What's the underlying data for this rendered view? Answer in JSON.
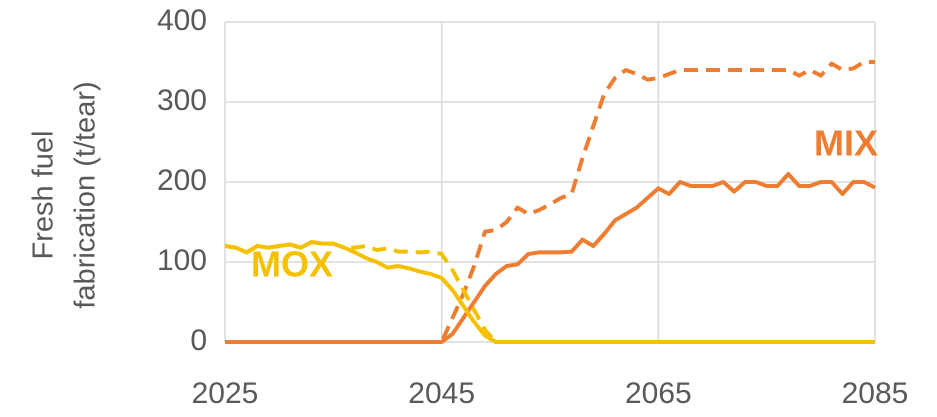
{
  "chart_data": {
    "type": "line",
    "ylabel": [
      "Fresh fuel",
      "fabrication (t/tear)"
    ],
    "annotations": [
      {
        "text": "MOX",
        "color": "#f5c000"
      },
      {
        "text": "MIX",
        "color": "#ed7d31"
      }
    ],
    "x": [
      2025,
      2026,
      2027,
      2028,
      2029,
      2030,
      2031,
      2032,
      2033,
      2034,
      2035,
      2036,
      2037,
      2038,
      2039,
      2040,
      2041,
      2042,
      2043,
      2044,
      2045,
      2046,
      2047,
      2048,
      2049,
      2050,
      2051,
      2052,
      2053,
      2054,
      2055,
      2056,
      2057,
      2058,
      2059,
      2060,
      2061,
      2062,
      2063,
      2064,
      2065,
      2066,
      2067,
      2068,
      2069,
      2070,
      2071,
      2072,
      2073,
      2074,
      2075,
      2076,
      2077,
      2078,
      2079,
      2080,
      2081,
      2082,
      2083,
      2084,
      2085
    ],
    "series": [
      {
        "color": "#ed7d31",
        "dashed": false,
        "values": [
          0,
          0,
          0,
          0,
          0,
          0,
          0,
          0,
          0,
          0,
          0,
          0,
          0,
          0,
          0,
          0,
          0,
          0,
          0,
          0,
          0,
          10,
          30,
          50,
          70,
          85,
          95,
          97,
          110,
          112,
          112,
          112,
          113,
          128,
          120,
          135,
          152,
          160,
          168,
          180,
          192,
          185,
          200,
          195,
          195,
          195,
          200,
          188,
          200,
          200,
          195,
          195,
          210,
          195,
          195,
          200,
          200,
          185,
          200,
          200,
          193
        ]
      },
      {
        "color": "#ed7d31",
        "dashed": true,
        "values": [
          0,
          0,
          0,
          0,
          0,
          0,
          0,
          0,
          0,
          0,
          0,
          0,
          0,
          0,
          0,
          0,
          0,
          0,
          0,
          0,
          0,
          30,
          60,
          95,
          138,
          140,
          150,
          168,
          160,
          165,
          172,
          180,
          185,
          230,
          270,
          310,
          330,
          340,
          335,
          328,
          330,
          335,
          340,
          340,
          340,
          340,
          340,
          340,
          340,
          340,
          340,
          340,
          340,
          333,
          340,
          333,
          348,
          340,
          342,
          350,
          350
        ]
      },
      {
        "color": "#f5c000",
        "dashed": true,
        "values": [
          120,
          118,
          112,
          120,
          118,
          120,
          122,
          118,
          125,
          123,
          123,
          118,
          118,
          120,
          115,
          117,
          113,
          113,
          112,
          113,
          110,
          90,
          65,
          40,
          15,
          0,
          0,
          0,
          0,
          0,
          0,
          0,
          0,
          0,
          0,
          0,
          0,
          0,
          0,
          0,
          0,
          0,
          0,
          0,
          0,
          0,
          0,
          0,
          0,
          0,
          0,
          0,
          0,
          0,
          0,
          0,
          0,
          0,
          0,
          0,
          0
        ]
      },
      {
        "color": "#f5c000",
        "dashed": false,
        "values": [
          120,
          118,
          112,
          120,
          118,
          120,
          122,
          118,
          125,
          123,
          123,
          118,
          112,
          105,
          100,
          93,
          95,
          92,
          88,
          85,
          80,
          65,
          45,
          25,
          8,
          0,
          0,
          0,
          0,
          0,
          0,
          0,
          0,
          0,
          0,
          0,
          0,
          0,
          0,
          0,
          0,
          0,
          0,
          0,
          0,
          0,
          0,
          0,
          0,
          0,
          0,
          0,
          0,
          0,
          0,
          0,
          0,
          0,
          0,
          0,
          0
        ]
      }
    ],
    "xlim": [
      2025,
      2085
    ],
    "xticks": [
      2025,
      2045,
      2065,
      2085
    ],
    "ylim": [
      0,
      400
    ],
    "yticks": [
      0,
      100,
      200,
      300,
      400
    ],
    "grid": true
  }
}
